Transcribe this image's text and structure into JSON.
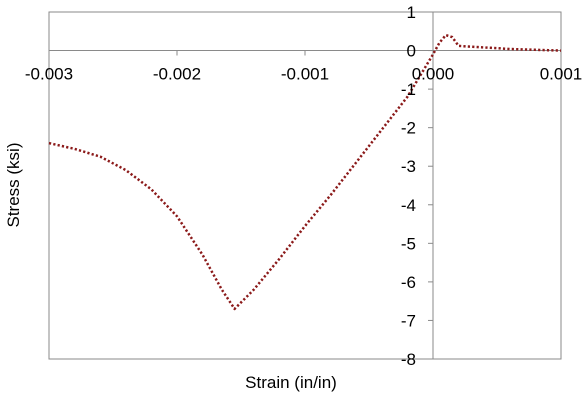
{
  "chart_data": {
    "type": "line",
    "title": "",
    "xlabel": "Strain (in/in)",
    "ylabel": "Stress (ksi)",
    "xlim": [
      -0.003,
      0.001
    ],
    "ylim": [
      -8,
      1
    ],
    "x_ticks": [
      -0.003,
      -0.002,
      -0.001,
      0.0,
      0.001
    ],
    "x_tick_labels": [
      "-0.003",
      "-0.002",
      "-0.001",
      "0.000",
      "0.001"
    ],
    "y_ticks": [
      1,
      0,
      -1,
      -2,
      -3,
      -4,
      -5,
      -6,
      -7,
      -8
    ],
    "y_tick_labels": [
      "1",
      "0",
      "-1",
      "-2",
      "-3",
      "-4",
      "-5",
      "-6",
      "-7",
      "-8"
    ],
    "grid": false,
    "legend": "none",
    "series": [
      {
        "color": "#8b1a1a",
        "line_style": "dotted",
        "x": [
          -0.003,
          -0.0028,
          -0.0026,
          -0.0024,
          -0.0022,
          -0.002,
          -0.0018,
          -0.00165,
          -0.00155,
          -0.0014,
          -0.0012,
          -0.001,
          -0.0008,
          -0.0006,
          -0.0004,
          -0.0002,
          0.0,
          5e-05,
          0.0001,
          0.00015,
          0.0002,
          0.0003,
          0.0004,
          0.0005,
          0.0006,
          0.0007,
          0.0008,
          0.0009,
          0.001
        ],
        "y": [
          -2.4,
          -2.55,
          -2.75,
          -3.1,
          -3.6,
          -4.3,
          -5.3,
          -6.2,
          -6.7,
          -6.2,
          -5.4,
          -4.55,
          -3.75,
          -2.9,
          -2.05,
          -1.2,
          -0.1,
          0.2,
          0.4,
          0.35,
          0.12,
          0.1,
          0.08,
          0.06,
          0.04,
          0.03,
          0.02,
          0.01,
          0.0
        ]
      }
    ]
  }
}
